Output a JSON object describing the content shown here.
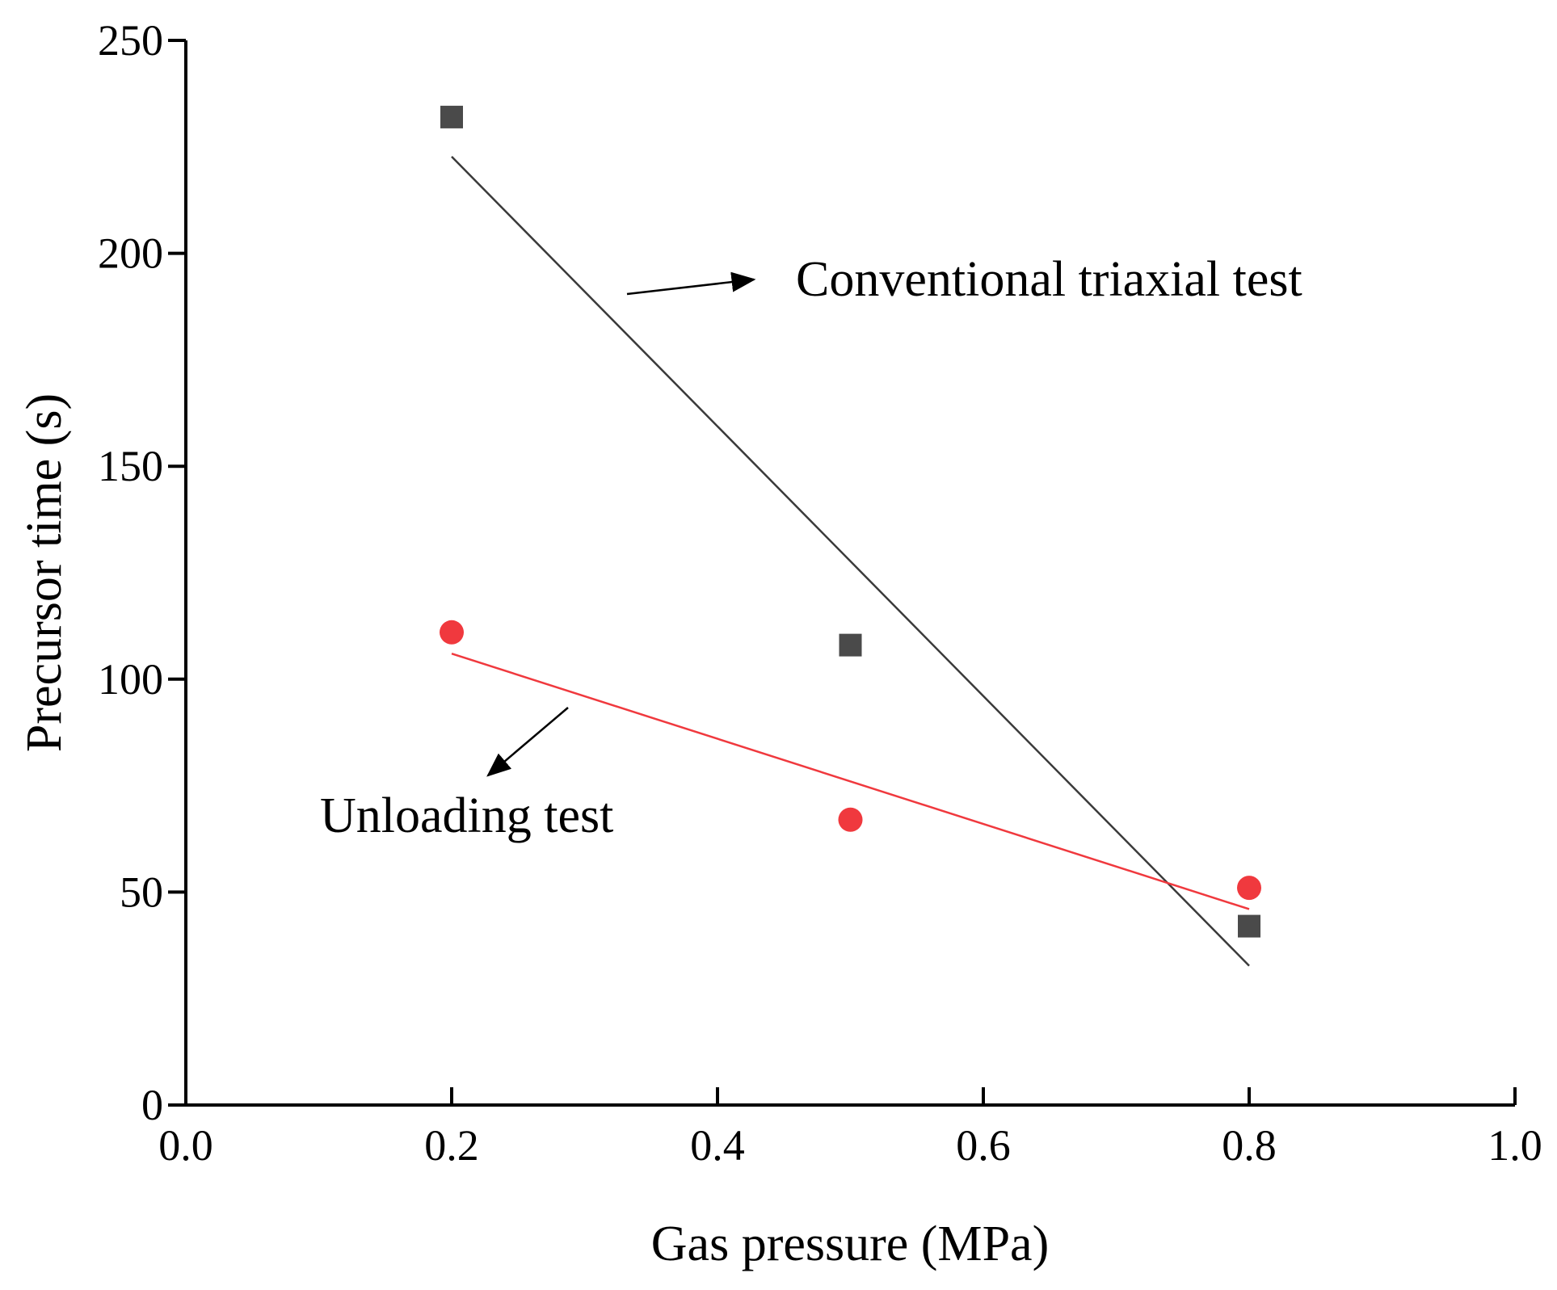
{
  "chart_data": {
    "type": "scatter",
    "title": "",
    "xlabel": "Gas pressure (MPa)",
    "ylabel": "Precursor time (s)",
    "xlim": [
      0.0,
      1.0
    ],
    "ylim": [
      0,
      250
    ],
    "x_ticks": [
      0.0,
      0.2,
      0.4,
      0.6,
      0.8,
      1.0
    ],
    "x_tick_labels": [
      "0.0",
      "0.2",
      "0.4",
      "0.6",
      "0.8",
      "1.0"
    ],
    "y_ticks": [
      0,
      50,
      100,
      150,
      200,
      250
    ],
    "y_tick_labels": [
      "0",
      "50",
      "100",
      "150",
      "200",
      "250"
    ],
    "grid": false,
    "series": [
      {
        "name": "Conventional triaxial test",
        "marker": "square",
        "color": "#4a4a4a",
        "line_color": "#3a3a3a",
        "x": [
          0.2,
          0.5,
          0.8
        ],
        "y": [
          232,
          108,
          42
        ],
        "fit_line": {
          "x": [
            0.2,
            0.8
          ],
          "y": [
            222.7,
            32.7
          ]
        }
      },
      {
        "name": "Unloading test",
        "marker": "circle",
        "color": "#f0393e",
        "line_color": "#f0393e",
        "x": [
          0.2,
          0.5,
          0.8
        ],
        "y": [
          111,
          67,
          51
        ],
        "fit_line": {
          "x": [
            0.2,
            0.8
          ],
          "y": [
            106,
            46
          ]
        }
      }
    ],
    "annotations": [
      {
        "text": "Conventional triaxial test",
        "points_to": "Conventional triaxial test"
      },
      {
        "text": "Unloading test",
        "points_to": "Unloading test"
      }
    ]
  }
}
